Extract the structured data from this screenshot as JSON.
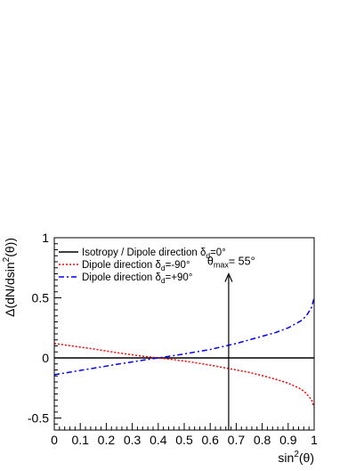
{
  "chart_data": {
    "type": "line",
    "title": "",
    "xlabel": {
      "main": "sin",
      "sup": "2",
      "rest": "(θ)"
    },
    "ylabel": {
      "main": "Δ(dN/dsin",
      "sup": "2",
      "rest": "(θ))"
    },
    "xlim": [
      0,
      1
    ],
    "ylim": [
      -0.6,
      1.0
    ],
    "xticks": [
      "0",
      "0.1",
      "0.2",
      "0.3",
      "0.4",
      "0.5",
      "0.6",
      "0.7",
      "0.8",
      "0.9",
      "1"
    ],
    "xtick_values": [
      0,
      0.1,
      0.2,
      0.3,
      0.4,
      0.5,
      0.6,
      0.7,
      0.8,
      0.9,
      1.0
    ],
    "yticks": [
      "-0.5",
      "0",
      "0.5",
      "1"
    ],
    "ytick_values": [
      -0.5,
      0,
      0.5,
      1.0
    ],
    "grid": false,
    "legend_position": "top-left",
    "legend": [
      {
        "prefix": "Isotropy / Dipole direction δ",
        "sub": "d",
        "suffix": "=0°",
        "style": "solid",
        "color": "#000000"
      },
      {
        "prefix": "Dipole direction δ",
        "sub": "d",
        "suffix": "=-90°",
        "style": "dotted",
        "color": "#ff0000"
      },
      {
        "prefix": "Dipole direction δ",
        "sub": "d",
        "suffix": "=+90°",
        "style": "dashdot",
        "color": "#0000ff"
      }
    ],
    "series": [
      {
        "style": "solid",
        "color": "#000000",
        "x": [
          0,
          1
        ],
        "y": [
          0,
          0
        ]
      },
      {
        "style": "dotted",
        "color": "#ff0000",
        "x": [
          0,
          0.05,
          0.1,
          0.15,
          0.2,
          0.25,
          0.3,
          0.35,
          0.4,
          0.45,
          0.5,
          0.55,
          0.6,
          0.65,
          0.7,
          0.75,
          0.8,
          0.85,
          0.9,
          0.95,
          0.97,
          0.99,
          1.0
        ],
        "y": [
          0.12,
          0.105,
          0.09,
          0.075,
          0.058,
          0.041,
          0.026,
          0.012,
          0.0,
          -0.012,
          -0.026,
          -0.042,
          -0.06,
          -0.08,
          -0.1,
          -0.12,
          -0.147,
          -0.176,
          -0.21,
          -0.26,
          -0.295,
          -0.35,
          -0.41
        ]
      },
      {
        "style": "dashdot",
        "color": "#0000ff",
        "x": [
          0,
          0.05,
          0.1,
          0.15,
          0.2,
          0.25,
          0.3,
          0.35,
          0.4,
          0.45,
          0.5,
          0.55,
          0.6,
          0.65,
          0.7,
          0.75,
          0.8,
          0.85,
          0.9,
          0.95,
          0.97,
          0.99,
          1.0
        ],
        "y": [
          -0.14,
          -0.122,
          -0.104,
          -0.086,
          -0.068,
          -0.05,
          -0.033,
          -0.016,
          0.0,
          0.016,
          0.033,
          0.052,
          0.07,
          0.095,
          0.12,
          0.15,
          0.18,
          0.21,
          0.25,
          0.31,
          0.35,
          0.42,
          0.5
        ]
      }
    ],
    "annotation": {
      "prefix": "θ",
      "sub": "max",
      "suffix": "= 55°",
      "x": 0.671,
      "y_from": -0.6,
      "y_to": 0.7
    }
  }
}
